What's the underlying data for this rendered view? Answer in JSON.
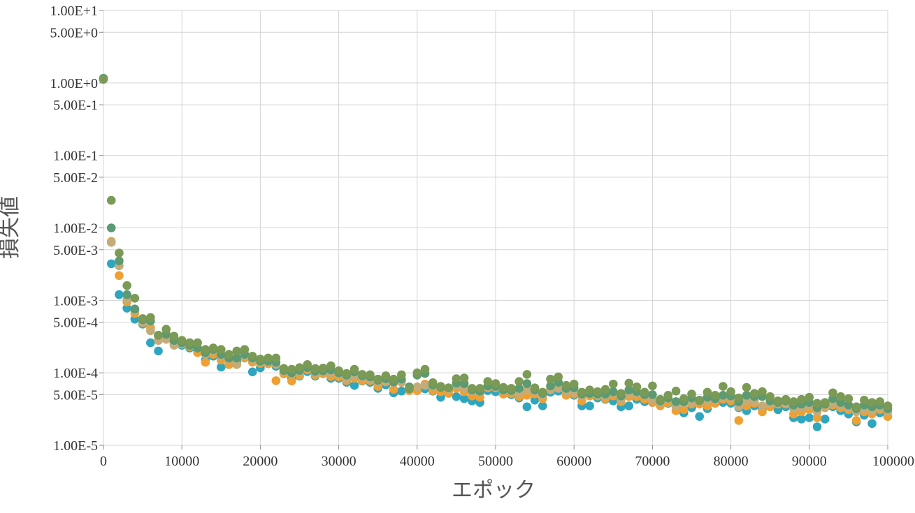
{
  "chart_data": {
    "type": "scatter",
    "title": "",
    "xlabel": "エポック",
    "ylabel": "損失値",
    "xlim": [
      0,
      100000
    ],
    "ylim": [
      1e-05,
      10
    ],
    "yscale": "log",
    "grid": true,
    "legend": "none",
    "x_ticks": [
      0,
      10000,
      20000,
      30000,
      40000,
      50000,
      60000,
      70000,
      80000,
      90000,
      100000
    ],
    "x_tick_labels": [
      "0",
      "10000",
      "20000",
      "30000",
      "40000",
      "50000",
      "60000",
      "70000",
      "80000",
      "90000",
      "100000"
    ],
    "y_ticks": [
      10,
      5,
      1,
      0.5,
      0.1,
      0.05,
      0.01,
      0.005,
      0.001,
      0.0005,
      0.0001,
      5e-05,
      1e-05
    ],
    "y_tick_labels": [
      "1.00E+1",
      "5.00E+0",
      "1.00E+0",
      "5.00E-1",
      "1.00E-1",
      "5.00E-2",
      "1.00E-2",
      "5.00E-3",
      "1.00E-3",
      "5.00E-4",
      "1.00E-4",
      "5.00E-5",
      "1.00E-5"
    ],
    "x": [
      0,
      1000,
      2000,
      3000,
      4000,
      5000,
      6000,
      7000,
      8000,
      9000,
      10000,
      11000,
      12000,
      13000,
      14000,
      15000,
      16000,
      17000,
      18000,
      19000,
      20000,
      21000,
      22000,
      23000,
      24000,
      25000,
      26000,
      27000,
      28000,
      29000,
      30000,
      31000,
      32000,
      33000,
      34000,
      35000,
      36000,
      37000,
      38000,
      39000,
      40000,
      41000,
      42000,
      43000,
      44000,
      45000,
      46000,
      47000,
      48000,
      49000,
      50000,
      51000,
      52000,
      53000,
      54000,
      55000,
      56000,
      57000,
      58000,
      59000,
      60000,
      61000,
      62000,
      63000,
      64000,
      65000,
      66000,
      67000,
      68000,
      69000,
      70000,
      71000,
      72000,
      73000,
      74000,
      75000,
      76000,
      77000,
      78000,
      79000,
      80000,
      81000,
      82000,
      83000,
      84000,
      85000,
      86000,
      87000,
      88000,
      89000,
      90000,
      91000,
      92000,
      93000,
      94000,
      95000,
      96000,
      97000,
      98000,
      99000,
      100000
    ],
    "series": [
      {
        "color": "#2ea6bf",
        "values": [
          1.15,
          0.0032,
          0.0012,
          0.00078,
          0.00055,
          0.00047,
          0.00026,
          0.0002,
          0.00031,
          0.00025,
          0.00024,
          0.00022,
          0.00021,
          0.00015,
          0.00017,
          0.00012,
          0.00013,
          0.00014,
          0.00016,
          0.000103,
          0.000117,
          0.000135,
          0.000123,
          9.7e-05,
          8.5e-05,
          9e-05,
          0.000104,
          9e-05,
          0.0001,
          8.4e-05,
          8.4e-05,
          7.4e-05,
          6.7e-05,
          7.7e-05,
          7.4e-05,
          6.1e-05,
          6.8e-05,
          5.3e-05,
          5.6e-05,
          6.1e-05,
          6e-05,
          6e-05,
          5.6e-05,
          4.6e-05,
          5.7e-05,
          4.7e-05,
          4.4e-05,
          4.1e-05,
          3.9e-05,
          5.7e-05,
          5.5e-05,
          5.1e-05,
          5e-05,
          4.5e-05,
          3.4e-05,
          4.2e-05,
          3.5e-05,
          5.4e-05,
          5.6e-05,
          5.1e-05,
          4.9e-05,
          3.5e-05,
          3.5e-05,
          4.5e-05,
          4.3e-05,
          4.1e-05,
          3.4e-05,
          3.5e-05,
          4.3e-05,
          4e-05,
          3.9e-05,
          3.6e-05,
          3.8e-05,
          3.4e-05,
          2.8e-05,
          3.3e-05,
          2.5e-05,
          3.2e-05,
          3.8e-05,
          3.9e-05,
          3.8e-05,
          3.3e-05,
          3e-05,
          3.5e-05,
          3.1e-05,
          3.4e-05,
          3.1e-05,
          3.4e-05,
          2.4e-05,
          2.3e-05,
          2.4e-05,
          1.8e-05,
          2.3e-05,
          3.4e-05,
          3e-05,
          2.7e-05,
          2.1e-05,
          2.6e-05,
          2e-05,
          2.8e-05,
          2.5e-05
        ]
      },
      {
        "color": "#f0a030",
        "values": [
          1.13,
          0.0065,
          0.0022,
          0.00095,
          0.00066,
          0.00051,
          0.00042,
          0.00031,
          0.00032,
          0.00026,
          0.00025,
          0.00023,
          0.00019,
          0.00014,
          0.00018,
          0.00015,
          0.00013,
          0.00013,
          0.00016,
          0.00014,
          0.000135,
          0.000133,
          7.8e-05,
          9.7e-05,
          7.7e-05,
          9.2e-05,
          0.00011,
          9.3e-05,
          9.7e-05,
          8.9e-05,
          8.8e-05,
          7.8e-05,
          8.4e-05,
          7.8e-05,
          7.8e-05,
          6.5e-05,
          7.5e-05,
          5.9e-05,
          7.4e-05,
          5.7e-05,
          5.7e-05,
          7e-05,
          5.7e-05,
          5.5e-05,
          5.2e-05,
          6.1e-05,
          5.5e-05,
          4.8e-05,
          4.6e-05,
          6.2e-05,
          6.2e-05,
          5.1e-05,
          5.2e-05,
          4.7e-05,
          4.9e-05,
          5.1e-05,
          4.4e-05,
          6.1e-05,
          6.3e-05,
          4.9e-05,
          5.1e-05,
          4.1e-05,
          4.8e-05,
          4.8e-05,
          4.4e-05,
          4.8e-05,
          4e-05,
          4.7e-05,
          4.7e-05,
          4.3e-05,
          3.9e-05,
          3.5e-05,
          3.9e-05,
          3e-05,
          3.1e-05,
          3.7e-05,
          3.7e-05,
          3.5e-05,
          3.8e-05,
          4.3e-05,
          4.1e-05,
          2.2e-05,
          3.5e-05,
          3.8e-05,
          2.9e-05,
          3.4e-05,
          3.7e-05,
          3.7e-05,
          2.7e-05,
          2.9e-05,
          3.1e-05,
          2.4e-05,
          3.3e-05,
          3.6e-05,
          3.3e-05,
          3.1e-05,
          2.2e-05,
          2.9e-05,
          2.7e-05,
          3.1e-05,
          2.5e-05
        ]
      },
      {
        "color": "#c4ab7a",
        "values": [
          1.14,
          0.0063,
          0.003,
          0.00103,
          0.00072,
          0.00049,
          0.00038,
          0.00028,
          0.00029,
          0.00024,
          0.00025,
          0.00024,
          0.00022,
          0.00018,
          0.0002,
          0.00017,
          0.00015,
          0.00013,
          0.00017,
          0.00015,
          0.00014,
          0.00014,
          0.00013,
          0.000105,
          9.5e-05,
          0.000102,
          0.000117,
          0.0001,
          0.000102,
          9.9e-05,
          9.6e-05,
          8.3e-05,
          9.3e-05,
          8.6e-05,
          8.2e-05,
          7.4e-05,
          7.7e-05,
          7.3e-05,
          7.5e-05,
          6.4e-05,
          6.4e-05,
          6.7e-05,
          6.5e-05,
          6.2e-05,
          6e-05,
          6.7e-05,
          6.1e-05,
          5.5e-05,
          5.4e-05,
          6.4e-05,
          6.2e-05,
          5.7e-05,
          5.6e-05,
          5.2e-05,
          5.8e-05,
          5.5e-05,
          4.9e-05,
          5.8e-05,
          6.1e-05,
          5.4e-05,
          5.4e-05,
          4.8e-05,
          5.1e-05,
          4.9e-05,
          4.8e-05,
          5.2e-05,
          4.3e-05,
          5.1e-05,
          5.2e-05,
          4.8e-05,
          4.2e-05,
          3.9e-05,
          4.4e-05,
          3.5e-05,
          3.8e-05,
          3.9e-05,
          4e-05,
          4.1e-05,
          4.2e-05,
          4.6e-05,
          4.5e-05,
          3.4e-05,
          4.1e-05,
          4.1e-05,
          3.5e-05,
          3.8e-05,
          3.8e-05,
          3.8e-05,
          3.2e-05,
          3.3e-05,
          3.5e-05,
          2.9e-05,
          3.4e-05,
          3.8e-05,
          3.6e-05,
          3.3e-05,
          2.9e-05,
          3.2e-05,
          3e-05,
          3.3e-05,
          2.9e-05
        ]
      },
      {
        "color": "#5b9a72",
        "values": [
          1.16,
          0.01,
          0.0035,
          0.0012,
          0.00076,
          0.00054,
          0.00052,
          0.00033,
          0.00034,
          0.00028,
          0.00026,
          0.00024,
          0.00022,
          0.00019,
          0.00021,
          0.00018,
          0.00016,
          0.00016,
          0.00018,
          0.00016,
          0.000145,
          0.000145,
          0.00014,
          0.000108,
          0.0001,
          0.000108,
          0.000118,
          0.000105,
          0.000107,
          0.00011,
          0.0001,
          9.3e-05,
          0.000103,
          9.1e-05,
          8.8e-05,
          7.9e-05,
          8.3e-05,
          7.5e-05,
          8.2e-05,
          6.4e-05,
          9.3e-05,
          9.8e-05,
          6.8e-05,
          6.3e-05,
          6.2e-05,
          7.2e-05,
          7.1e-05,
          5.8e-05,
          5.6e-05,
          6.6e-05,
          6.5e-05,
          5.8e-05,
          5.7e-05,
          6.1e-05,
          7.1e-05,
          5.8e-05,
          5.2e-05,
          6.6e-05,
          7.4e-05,
          6.1e-05,
          6.2e-05,
          5.1e-05,
          5.2e-05,
          5.1e-05,
          5.1e-05,
          5.5e-05,
          4.8e-05,
          5.8e-05,
          5.5e-05,
          5e-05,
          5e-05,
          4.1e-05,
          4.5e-05,
          4e-05,
          4e-05,
          4.5e-05,
          4.2e-05,
          4.6e-05,
          4.4e-05,
          4.9e-05,
          4.8e-05,
          4e-05,
          4.9e-05,
          4.7e-05,
          4.7e-05,
          4.1e-05,
          3.9e-05,
          4.1e-05,
          3.6e-05,
          3.7e-05,
          3.9e-05,
          3.3e-05,
          3.7e-05,
          4.4e-05,
          3.9e-05,
          3.6e-05,
          3.2e-05,
          3.6e-05,
          3.4e-05,
          3.6e-05,
          3.2e-05
        ]
      },
      {
        "color": "#7a9a55",
        "values": [
          1.12,
          0.024,
          0.0045,
          0.0016,
          0.00107,
          0.00056,
          0.00058,
          0.00033,
          0.0004,
          0.00032,
          0.00028,
          0.00026,
          0.00026,
          0.00021,
          0.00022,
          0.00021,
          0.00018,
          0.0002,
          0.00021,
          0.00017,
          0.000155,
          0.00016,
          0.00016,
          0.000115,
          0.000112,
          0.000118,
          0.00013,
          0.000115,
          0.000116,
          0.000125,
          0.000107,
          9.8e-05,
          0.000112,
          9.5e-05,
          9.4e-05,
          8.2e-05,
          9.1e-05,
          8.2e-05,
          9.4e-05,
          6e-05,
          0.0001,
          0.000112,
          7.3e-05,
          6.5e-05,
          6.2e-05,
          8.3e-05,
          8.5e-05,
          6.1e-05,
          6.1e-05,
          7.6e-05,
          7.1e-05,
          6.3e-05,
          6.1e-05,
          7.6e-05,
          9.5e-05,
          6.2e-05,
          5.4e-05,
          8.2e-05,
          8.8e-05,
          6.7e-05,
          7e-05,
          5.4e-05,
          5.8e-05,
          5.5e-05,
          5.9e-05,
          7e-05,
          5.2e-05,
          7.2e-05,
          6.4e-05,
          5.4e-05,
          6.6e-05,
          4.3e-05,
          4.9e-05,
          5.6e-05,
          4.4e-05,
          5.1e-05,
          4.1e-05,
          5.4e-05,
          4.9e-05,
          6.5e-05,
          5.5e-05,
          4.5e-05,
          6.3e-05,
          5.2e-05,
          5.5e-05,
          4.7e-05,
          4.1e-05,
          4.3e-05,
          4e-05,
          4.3e-05,
          4.6e-05,
          3.8e-05,
          3.9e-05,
          5.3e-05,
          4.7e-05,
          4.4e-05,
          3.4e-05,
          4.2e-05,
          3.9e-05,
          4e-05,
          3.5e-05
        ]
      }
    ]
  }
}
